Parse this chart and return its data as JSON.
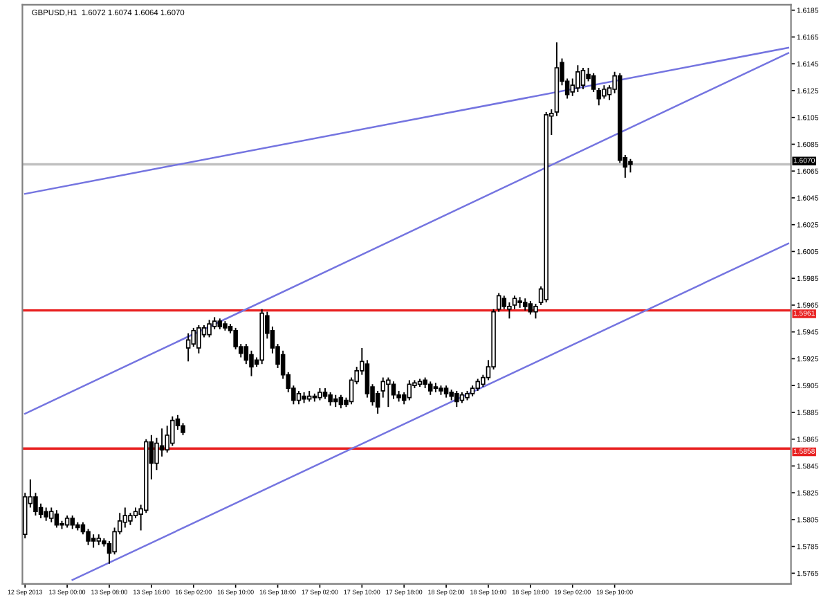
{
  "chart_data": {
    "type": "candlestick",
    "title": "GBPUSD,H1  1.6072 1.6074 1.6064 1.6070",
    "categories": [
      "12 Sep 2013",
      null,
      null,
      null,
      null,
      null,
      null,
      null,
      "13 Sep 00:00",
      null,
      null,
      null,
      null,
      null,
      null,
      null,
      "13 Sep 08:00",
      null,
      null,
      null,
      null,
      null,
      null,
      null,
      "13 Sep 16:00",
      null,
      null,
      null,
      null,
      null,
      null,
      null,
      "16 Sep 02:00",
      null,
      null,
      null,
      null,
      null,
      null,
      null,
      "16 Sep 10:00",
      null,
      null,
      null,
      null,
      null,
      null,
      null,
      "16 Sep 18:00",
      null,
      null,
      null,
      null,
      null,
      null,
      null,
      "17 Sep 02:00",
      null,
      null,
      null,
      null,
      null,
      null,
      null,
      "17 Sep 10:00",
      null,
      null,
      null,
      null,
      null,
      null,
      null,
      "17 Sep 18:00",
      null,
      null,
      null,
      null,
      null,
      null,
      null,
      "18 Sep 02:00",
      null,
      null,
      null,
      null,
      null,
      null,
      null,
      "18 Sep 10:00",
      null,
      null,
      null,
      null,
      null,
      null,
      null,
      "18 Sep 18:00",
      null,
      null,
      null,
      null,
      null,
      null,
      null,
      "19 Sep 02:00",
      null,
      null,
      null,
      null,
      null,
      null,
      null,
      "19 Sep 10:00",
      null,
      null,
      null,
      null,
      null,
      null,
      null,
      null,
      null,
      null,
      null,
      null,
      null,
      null,
      null,
      null,
      null,
      null,
      null,
      null,
      null,
      null,
      null,
      null,
      null,
      null,
      null,
      null,
      null,
      null,
      null,
      null,
      null
    ],
    "ohlc": [
      [
        1.5794,
        1.5825,
        1.5791,
        1.5822
      ],
      [
        1.5817,
        1.5835,
        1.5814,
        1.5822
      ],
      [
        1.5822,
        1.5825,
        1.5808,
        1.5811
      ],
      [
        1.5814,
        1.5817,
        1.5806,
        1.5809
      ],
      [
        1.5811,
        1.5814,
        1.5804,
        1.5807
      ],
      [
        1.5806,
        1.5814,
        1.5803,
        1.5811
      ],
      [
        1.5809,
        1.5812,
        1.5799,
        1.5801
      ],
      [
        1.5802,
        1.5804,
        1.5798,
        1.5801
      ],
      [
        1.5801,
        1.5808,
        1.5799,
        1.5806
      ],
      [
        1.5806,
        1.5808,
        1.5798,
        1.5801
      ],
      [
        1.5801,
        1.5803,
        1.5797,
        1.5799
      ],
      [
        1.5801,
        1.5803,
        1.5794,
        1.5796
      ],
      [
        1.5796,
        1.5798,
        1.5786,
        1.5789
      ],
      [
        1.5791,
        1.5794,
        1.5784,
        1.5789
      ],
      [
        1.5789,
        1.5794,
        1.5786,
        1.5791
      ],
      [
        1.5789,
        1.5791,
        1.5785,
        1.5787
      ],
      [
        1.5787,
        1.5789,
        1.5772,
        1.578
      ],
      [
        1.5781,
        1.5799,
        1.5779,
        1.5796
      ],
      [
        1.5796,
        1.581,
        1.5794,
        1.5804
      ],
      [
        1.5803,
        1.5814,
        1.5799,
        1.5808
      ],
      [
        1.5804,
        1.581,
        1.5801,
        1.5808
      ],
      [
        1.5808,
        1.5814,
        1.5806,
        1.5811
      ],
      [
        1.5809,
        1.5816,
        1.5797,
        1.5813
      ],
      [
        1.5812,
        1.5865,
        1.581,
        1.5863
      ],
      [
        1.5863,
        1.5868,
        1.5835,
        1.5847
      ],
      [
        1.5847,
        1.5866,
        1.5842,
        1.5862
      ],
      [
        1.586,
        1.5873,
        1.5852,
        1.5857
      ],
      [
        1.5857,
        1.5875,
        1.5855,
        1.5868
      ],
      [
        1.5862,
        1.5882,
        1.586,
        1.5879
      ],
      [
        1.588,
        1.5883,
        1.5872,
        1.5875
      ],
      [
        1.5875,
        1.5877,
        1.5868,
        1.587
      ],
      [
        1.5933,
        1.5944,
        1.5923,
        1.5939
      ],
      [
        1.5936,
        1.5948,
        1.5934,
        1.5946
      ],
      [
        1.5933,
        1.595,
        1.5929,
        1.5948
      ],
      [
        1.5943,
        1.595,
        1.5941,
        1.5948
      ],
      [
        1.5943,
        1.5954,
        1.5941,
        1.5951
      ],
      [
        1.5949,
        1.5956,
        1.5947,
        1.5953
      ],
      [
        1.5953,
        1.5955,
        1.5947,
        1.5949
      ],
      [
        1.5951,
        1.5953,
        1.5946,
        1.5948
      ],
      [
        1.5949,
        1.5951,
        1.5944,
        1.5946
      ],
      [
        1.5946,
        1.5948,
        1.5932,
        1.5934
      ],
      [
        1.5934,
        1.5936,
        1.5926,
        1.5929
      ],
      [
        1.5934,
        1.5936,
        1.5921,
        1.5924
      ],
      [
        1.5928,
        1.5931,
        1.5912,
        1.5919
      ],
      [
        1.5924,
        1.5926,
        1.5919,
        1.5921
      ],
      [
        1.5924,
        1.5962,
        1.5921,
        1.5959
      ],
      [
        1.5957,
        1.596,
        1.594,
        1.5944
      ],
      [
        1.5946,
        1.5949,
        1.5929,
        1.5933
      ],
      [
        1.5934,
        1.5936,
        1.5918,
        1.5921
      ],
      [
        1.5928,
        1.5931,
        1.591,
        1.5913
      ],
      [
        1.5913,
        1.5915,
        1.59,
        1.5903
      ],
      [
        1.5903,
        1.5905,
        1.5891,
        1.5894
      ],
      [
        1.5894,
        1.5901,
        1.5891,
        1.5899
      ],
      [
        1.5897,
        1.59,
        1.5892,
        1.5895
      ],
      [
        1.5895,
        1.5901,
        1.5893,
        1.5897
      ],
      [
        1.5897,
        1.5899,
        1.5893,
        1.5896
      ],
      [
        1.5896,
        1.5903,
        1.5894,
        1.59
      ],
      [
        1.59,
        1.5903,
        1.5895,
        1.5897
      ],
      [
        1.5898,
        1.59,
        1.589,
        1.5893
      ],
      [
        1.5895,
        1.5898,
        1.5889,
        1.5893
      ],
      [
        1.5896,
        1.5898,
        1.5888,
        1.5891
      ],
      [
        1.5894,
        1.5896,
        1.5889,
        1.5891
      ],
      [
        1.5893,
        1.5911,
        1.5891,
        1.5909
      ],
      [
        1.5908,
        1.5919,
        1.5906,
        1.5916
      ],
      [
        1.5916,
        1.5933,
        1.5913,
        1.5923
      ],
      [
        1.5921,
        1.5924,
        1.5896,
        1.5899
      ],
      [
        1.5904,
        1.5906,
        1.589,
        1.5893
      ],
      [
        1.5899,
        1.5901,
        1.5884,
        1.5889
      ],
      [
        1.5901,
        1.5911,
        1.5896,
        1.5908
      ],
      [
        1.5906,
        1.5911,
        1.5889,
        1.5909
      ],
      [
        1.5906,
        1.5908,
        1.5895,
        1.5898
      ],
      [
        1.5898,
        1.5901,
        1.5893,
        1.5896
      ],
      [
        1.5898,
        1.59,
        1.5891,
        1.5894
      ],
      [
        1.5896,
        1.5909,
        1.5894,
        1.5906
      ],
      [
        1.5905,
        1.5909,
        1.5903,
        1.5907
      ],
      [
        1.5906,
        1.591,
        1.5904,
        1.5908
      ],
      [
        1.5909,
        1.5911,
        1.5903,
        1.5906
      ],
      [
        1.5906,
        1.5908,
        1.5898,
        1.5901
      ],
      [
        1.5904,
        1.5907,
        1.59,
        1.5903
      ],
      [
        1.5903,
        1.5905,
        1.5898,
        1.5901
      ],
      [
        1.5903,
        1.5905,
        1.5896,
        1.5899
      ],
      [
        1.59,
        1.5902,
        1.5894,
        1.5897
      ],
      [
        1.5899,
        1.5901,
        1.5889,
        1.5893
      ],
      [
        1.5894,
        1.59,
        1.5892,
        1.5898
      ],
      [
        1.5896,
        1.5901,
        1.5894,
        1.5899
      ],
      [
        1.5899,
        1.5905,
        1.5897,
        1.5903
      ],
      [
        1.5903,
        1.591,
        1.5901,
        1.5908
      ],
      [
        1.5906,
        1.5913,
        1.5904,
        1.5911
      ],
      [
        1.5911,
        1.5924,
        1.5909,
        1.5919
      ],
      [
        1.5919,
        1.5962,
        1.5917,
        1.596
      ],
      [
        1.5962,
        1.5974,
        1.596,
        1.5972
      ],
      [
        1.597,
        1.5972,
        1.5962,
        1.5964
      ],
      [
        1.5962,
        1.5967,
        1.5955,
        1.5964
      ],
      [
        1.5965,
        1.5972,
        1.5962,
        1.597
      ],
      [
        1.5968,
        1.5971,
        1.5963,
        1.5967
      ],
      [
        1.5967,
        1.597,
        1.5961,
        1.5964
      ],
      [
        1.5966,
        1.5968,
        1.5958,
        1.596
      ],
      [
        1.596,
        1.5966,
        1.5955,
        1.5964
      ],
      [
        1.5967,
        1.5979,
        1.5965,
        1.5977
      ],
      [
        1.5969,
        1.6109,
        1.5967,
        1.6107
      ],
      [
        1.6106,
        1.6111,
        1.6092,
        1.6108
      ],
      [
        1.6109,
        1.6161,
        1.6106,
        1.6142
      ],
      [
        1.6146,
        1.6149,
        1.6129,
        1.6132
      ],
      [
        1.6132,
        1.6134,
        1.6119,
        1.6122
      ],
      [
        1.6124,
        1.6134,
        1.6121,
        1.6129
      ],
      [
        1.6127,
        1.6144,
        1.6124,
        1.6139
      ],
      [
        1.6129,
        1.6142,
        1.6126,
        1.614
      ],
      [
        1.6137,
        1.6142,
        1.6132,
        1.6134
      ],
      [
        1.6136,
        1.6138,
        1.6124,
        1.6126
      ],
      [
        1.6125,
        1.6127,
        1.6114,
        1.6119
      ],
      [
        1.6121,
        1.6129,
        1.6119,
        1.6126
      ],
      [
        1.6122,
        1.6129,
        1.6118,
        1.6127
      ],
      [
        1.6126,
        1.6139,
        1.6123,
        1.6136
      ],
      [
        1.6136,
        1.6138,
        1.6071,
        1.6073
      ],
      [
        1.6075,
        1.6077,
        1.606,
        1.6068
      ],
      [
        1.6072,
        1.6074,
        1.6064,
        1.607
      ],
      null,
      null,
      null,
      null,
      null,
      null,
      null,
      null,
      null,
      null,
      null,
      null,
      null,
      null,
      null,
      null,
      null,
      null,
      null,
      null,
      null,
      null,
      null,
      null,
      null,
      null,
      null,
      null,
      null,
      null
    ],
    "ylim": [
      1.5757,
      1.6189
    ],
    "yticks": [
      1.5765,
      1.5785,
      1.5805,
      1.5825,
      1.5845,
      1.5865,
      1.5885,
      1.5905,
      1.5925,
      1.5945,
      1.5965,
      1.5985,
      1.6005,
      1.6025,
      1.6045,
      1.6065,
      1.6085,
      1.6105,
      1.6125,
      1.6145,
      1.6165,
      1.6185
    ],
    "grid": false,
    "ref_lines": [
      {
        "axis": "y",
        "value": 1.607,
        "label": "1.6070",
        "color": "#c0c0c0"
      },
      {
        "axis": "y",
        "value": 1.5961,
        "label": "1.5961",
        "color": "#e82020"
      },
      {
        "axis": "y",
        "value": 1.5858,
        "label": "1.5858",
        "color": "#e82020"
      }
    ],
    "series": [
      {
        "type": "line",
        "values": [
          1.6048,
          null,
          null,
          null,
          null,
          null,
          null,
          null,
          null,
          null,
          null,
          null,
          null,
          null,
          null,
          null,
          null,
          null,
          null,
          null,
          null,
          null,
          null,
          null,
          null,
          null,
          null,
          null,
          null,
          null,
          null,
          null,
          null,
          null,
          null,
          null,
          null,
          null,
          null,
          null,
          null,
          null,
          null,
          null,
          null,
          null,
          null,
          null,
          null,
          null,
          null,
          null,
          null,
          null,
          null,
          null,
          null,
          null,
          null,
          null,
          null,
          null,
          null,
          null,
          null,
          null,
          null,
          null,
          null,
          null,
          null,
          null,
          null,
          null,
          null,
          null,
          null,
          null,
          null,
          null,
          null,
          null,
          null,
          null,
          null,
          null,
          null,
          null,
          null,
          null,
          null,
          null,
          null,
          null,
          null,
          null,
          null,
          null,
          null,
          null,
          null,
          null,
          null,
          null,
          null,
          null,
          null,
          null,
          null,
          null,
          null,
          null,
          null,
          null,
          null,
          null,
          null,
          null,
          null,
          null,
          null,
          null,
          null,
          null,
          null,
          null,
          null,
          null,
          null,
          null,
          null,
          null,
          null,
          null,
          null,
          null,
          null,
          null,
          null,
          null,
          null,
          null,
          null,
          null,
          null,
          1.6157
        ],
        "color": "#7474e0"
      },
      {
        "type": "line",
        "values": [
          1.5884,
          null,
          null,
          null,
          null,
          null,
          null,
          null,
          null,
          null,
          null,
          null,
          null,
          null,
          null,
          null,
          null,
          null,
          null,
          null,
          null,
          null,
          null,
          null,
          null,
          null,
          null,
          null,
          null,
          null,
          null,
          null,
          null,
          null,
          null,
          null,
          null,
          null,
          null,
          null,
          null,
          null,
          null,
          null,
          null,
          null,
          null,
          null,
          null,
          null,
          null,
          null,
          null,
          null,
          null,
          null,
          null,
          null,
          null,
          null,
          null,
          null,
          null,
          null,
          null,
          null,
          null,
          null,
          null,
          null,
          null,
          null,
          null,
          null,
          null,
          null,
          null,
          null,
          null,
          null,
          null,
          null,
          null,
          null,
          null,
          null,
          null,
          null,
          null,
          null,
          null,
          null,
          null,
          null,
          null,
          null,
          null,
          null,
          null,
          null,
          null,
          null,
          null,
          null,
          null,
          null,
          null,
          null,
          null,
          null,
          null,
          null,
          null,
          null,
          null,
          null,
          null,
          null,
          null,
          null,
          null,
          null,
          null,
          null,
          null,
          null,
          null,
          null,
          null,
          null,
          null,
          null,
          null,
          null,
          null,
          null,
          null,
          null,
          null,
          null,
          null,
          null,
          null,
          null,
          null,
          1.6153
        ],
        "color": "#7474e0"
      },
      {
        "type": "line",
        "values": [
          null,
          null,
          null,
          null,
          null,
          null,
          null,
          null,
          null,
          1.576,
          null,
          null,
          null,
          null,
          null,
          null,
          null,
          null,
          null,
          null,
          null,
          null,
          null,
          null,
          null,
          null,
          null,
          null,
          null,
          null,
          null,
          null,
          null,
          null,
          null,
          null,
          null,
          null,
          null,
          null,
          null,
          null,
          null,
          null,
          null,
          null,
          null,
          null,
          null,
          null,
          null,
          null,
          null,
          null,
          null,
          null,
          null,
          null,
          null,
          null,
          null,
          null,
          null,
          null,
          null,
          null,
          null,
          null,
          null,
          null,
          null,
          null,
          null,
          null,
          null,
          null,
          null,
          null,
          null,
          null,
          null,
          null,
          null,
          null,
          null,
          null,
          null,
          null,
          null,
          null,
          null,
          null,
          null,
          null,
          null,
          null,
          null,
          null,
          null,
          null,
          null,
          null,
          null,
          null,
          null,
          null,
          null,
          null,
          null,
          null,
          null,
          null,
          null,
          null,
          null,
          null,
          null,
          null,
          null,
          null,
          null,
          null,
          null,
          null,
          null,
          null,
          null,
          null,
          null,
          null,
          null,
          null,
          null,
          null,
          null,
          null,
          null,
          null,
          null,
          null,
          null,
          null,
          null,
          null,
          null,
          1.6011
        ],
        "color": "#7474e0"
      }
    ]
  }
}
